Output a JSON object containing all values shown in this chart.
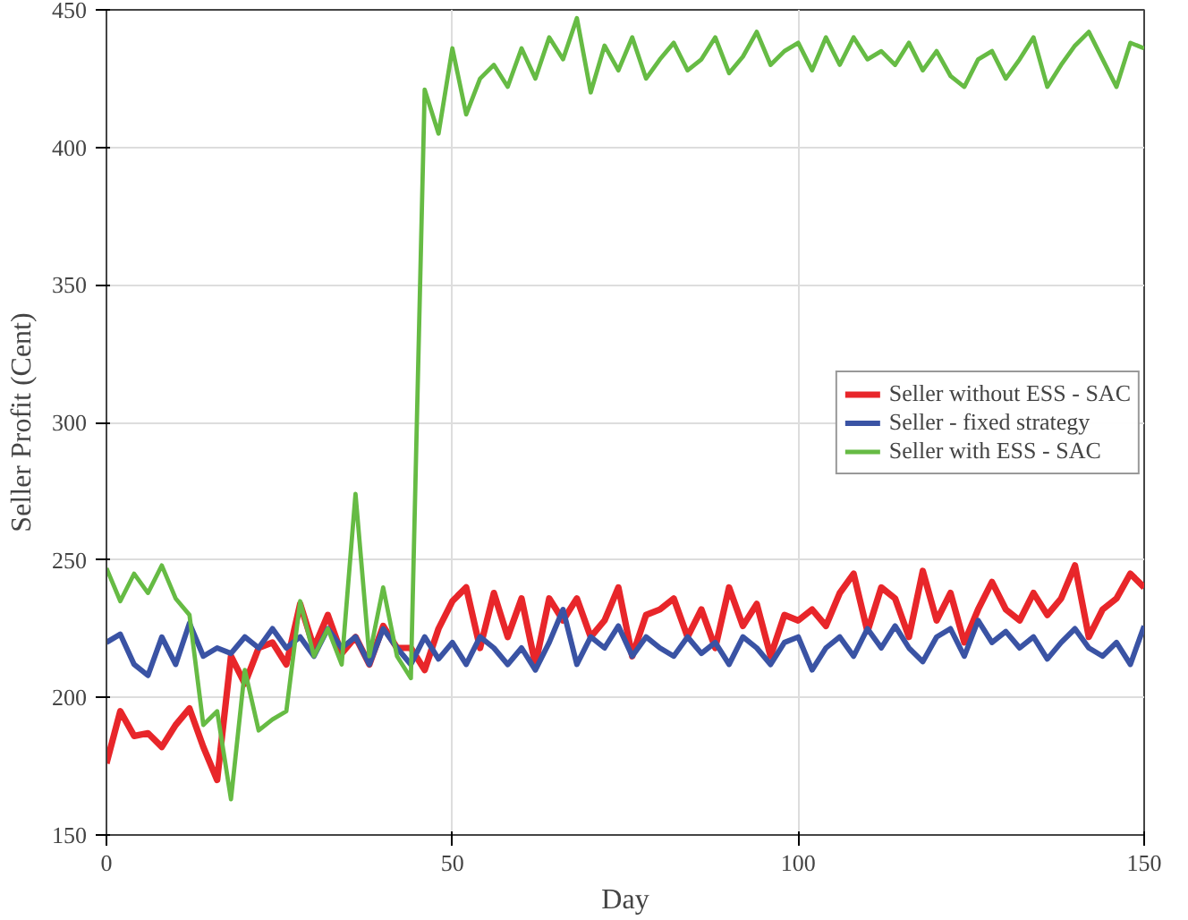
{
  "chart_data": {
    "type": "line",
    "xlabel": "Day",
    "ylabel": "Seller Profit (Cent)",
    "x": [
      0,
      2,
      4,
      6,
      8,
      10,
      12,
      14,
      16,
      18,
      20,
      22,
      24,
      26,
      28,
      30,
      32,
      34,
      36,
      38,
      40,
      42,
      44,
      46,
      48,
      50,
      52,
      54,
      56,
      58,
      60,
      62,
      64,
      66,
      68,
      70,
      72,
      74,
      76,
      78,
      80,
      82,
      84,
      86,
      88,
      90,
      92,
      94,
      96,
      98,
      100,
      102,
      104,
      106,
      108,
      110,
      112,
      114,
      116,
      118,
      120,
      122,
      124,
      126,
      128,
      130,
      132,
      134,
      136,
      138,
      140,
      142,
      144,
      146,
      148,
      150
    ],
    "series": [
      {
        "name": "Seller without ESS - SAC",
        "color": "#e8262a",
        "values": [
          176,
          195,
          186,
          187,
          182,
          190,
          196,
          182,
          170,
          215,
          205,
          218,
          220,
          212,
          234,
          218,
          230,
          216,
          222,
          212,
          226,
          218,
          218,
          210,
          225,
          235,
          240,
          218,
          238,
          222,
          236,
          212,
          236,
          228,
          236,
          222,
          228,
          240,
          215,
          230,
          232,
          236,
          222,
          232,
          218,
          240,
          226,
          234,
          215,
          230,
          228,
          232,
          226,
          238,
          245,
          224,
          240,
          236,
          222,
          246,
          228,
          238,
          220,
          232,
          242,
          232,
          228,
          238,
          230,
          236,
          248,
          222,
          232,
          236,
          245,
          240
        ]
      },
      {
        "name": "Seller - fixed strategy",
        "color": "#3a53a4",
        "values": [
          220,
          223,
          212,
          208,
          222,
          212,
          227,
          215,
          218,
          216,
          222,
          218,
          225,
          218,
          222,
          215,
          225,
          218,
          222,
          212,
          225,
          218,
          212,
          222,
          214,
          220,
          212,
          222,
          218,
          212,
          218,
          210,
          220,
          232,
          212,
          222,
          218,
          226,
          215,
          222,
          218,
          215,
          222,
          216,
          220,
          212,
          222,
          218,
          212,
          220,
          222,
          210,
          218,
          222,
          215,
          225,
          218,
          226,
          218,
          213,
          222,
          225,
          215,
          228,
          220,
          224,
          218,
          222,
          214,
          220,
          225,
          218,
          215,
          220,
          212,
          226
        ]
      },
      {
        "name": "Seller with ESS - SAC",
        "color": "#66bb44",
        "values": [
          247,
          235,
          245,
          238,
          248,
          236,
          230,
          190,
          195,
          163,
          210,
          188,
          192,
          195,
          235,
          215,
          225,
          212,
          274,
          215,
          240,
          215,
          207,
          421,
          405,
          436,
          412,
          425,
          430,
          422,
          436,
          425,
          440,
          432,
          447,
          420,
          437,
          428,
          440,
          425,
          432,
          438,
          428,
          432,
          440,
          427,
          433,
          442,
          430,
          435,
          438,
          428,
          440,
          430,
          440,
          432,
          435,
          430,
          438,
          428,
          435,
          426,
          422,
          432,
          435,
          425,
          432,
          440,
          422,
          430,
          437,
          442,
          432,
          422,
          438,
          436
        ]
      }
    ],
    "xlim": [
      0,
      150
    ],
    "ylim": [
      150,
      450
    ],
    "xticks": [
      0,
      50,
      100,
      150
    ],
    "yticks": [
      150,
      200,
      250,
      300,
      350,
      400,
      450
    ],
    "grid": true,
    "legend": "top right",
    "marker": "none",
    "line_style": "solid"
  }
}
